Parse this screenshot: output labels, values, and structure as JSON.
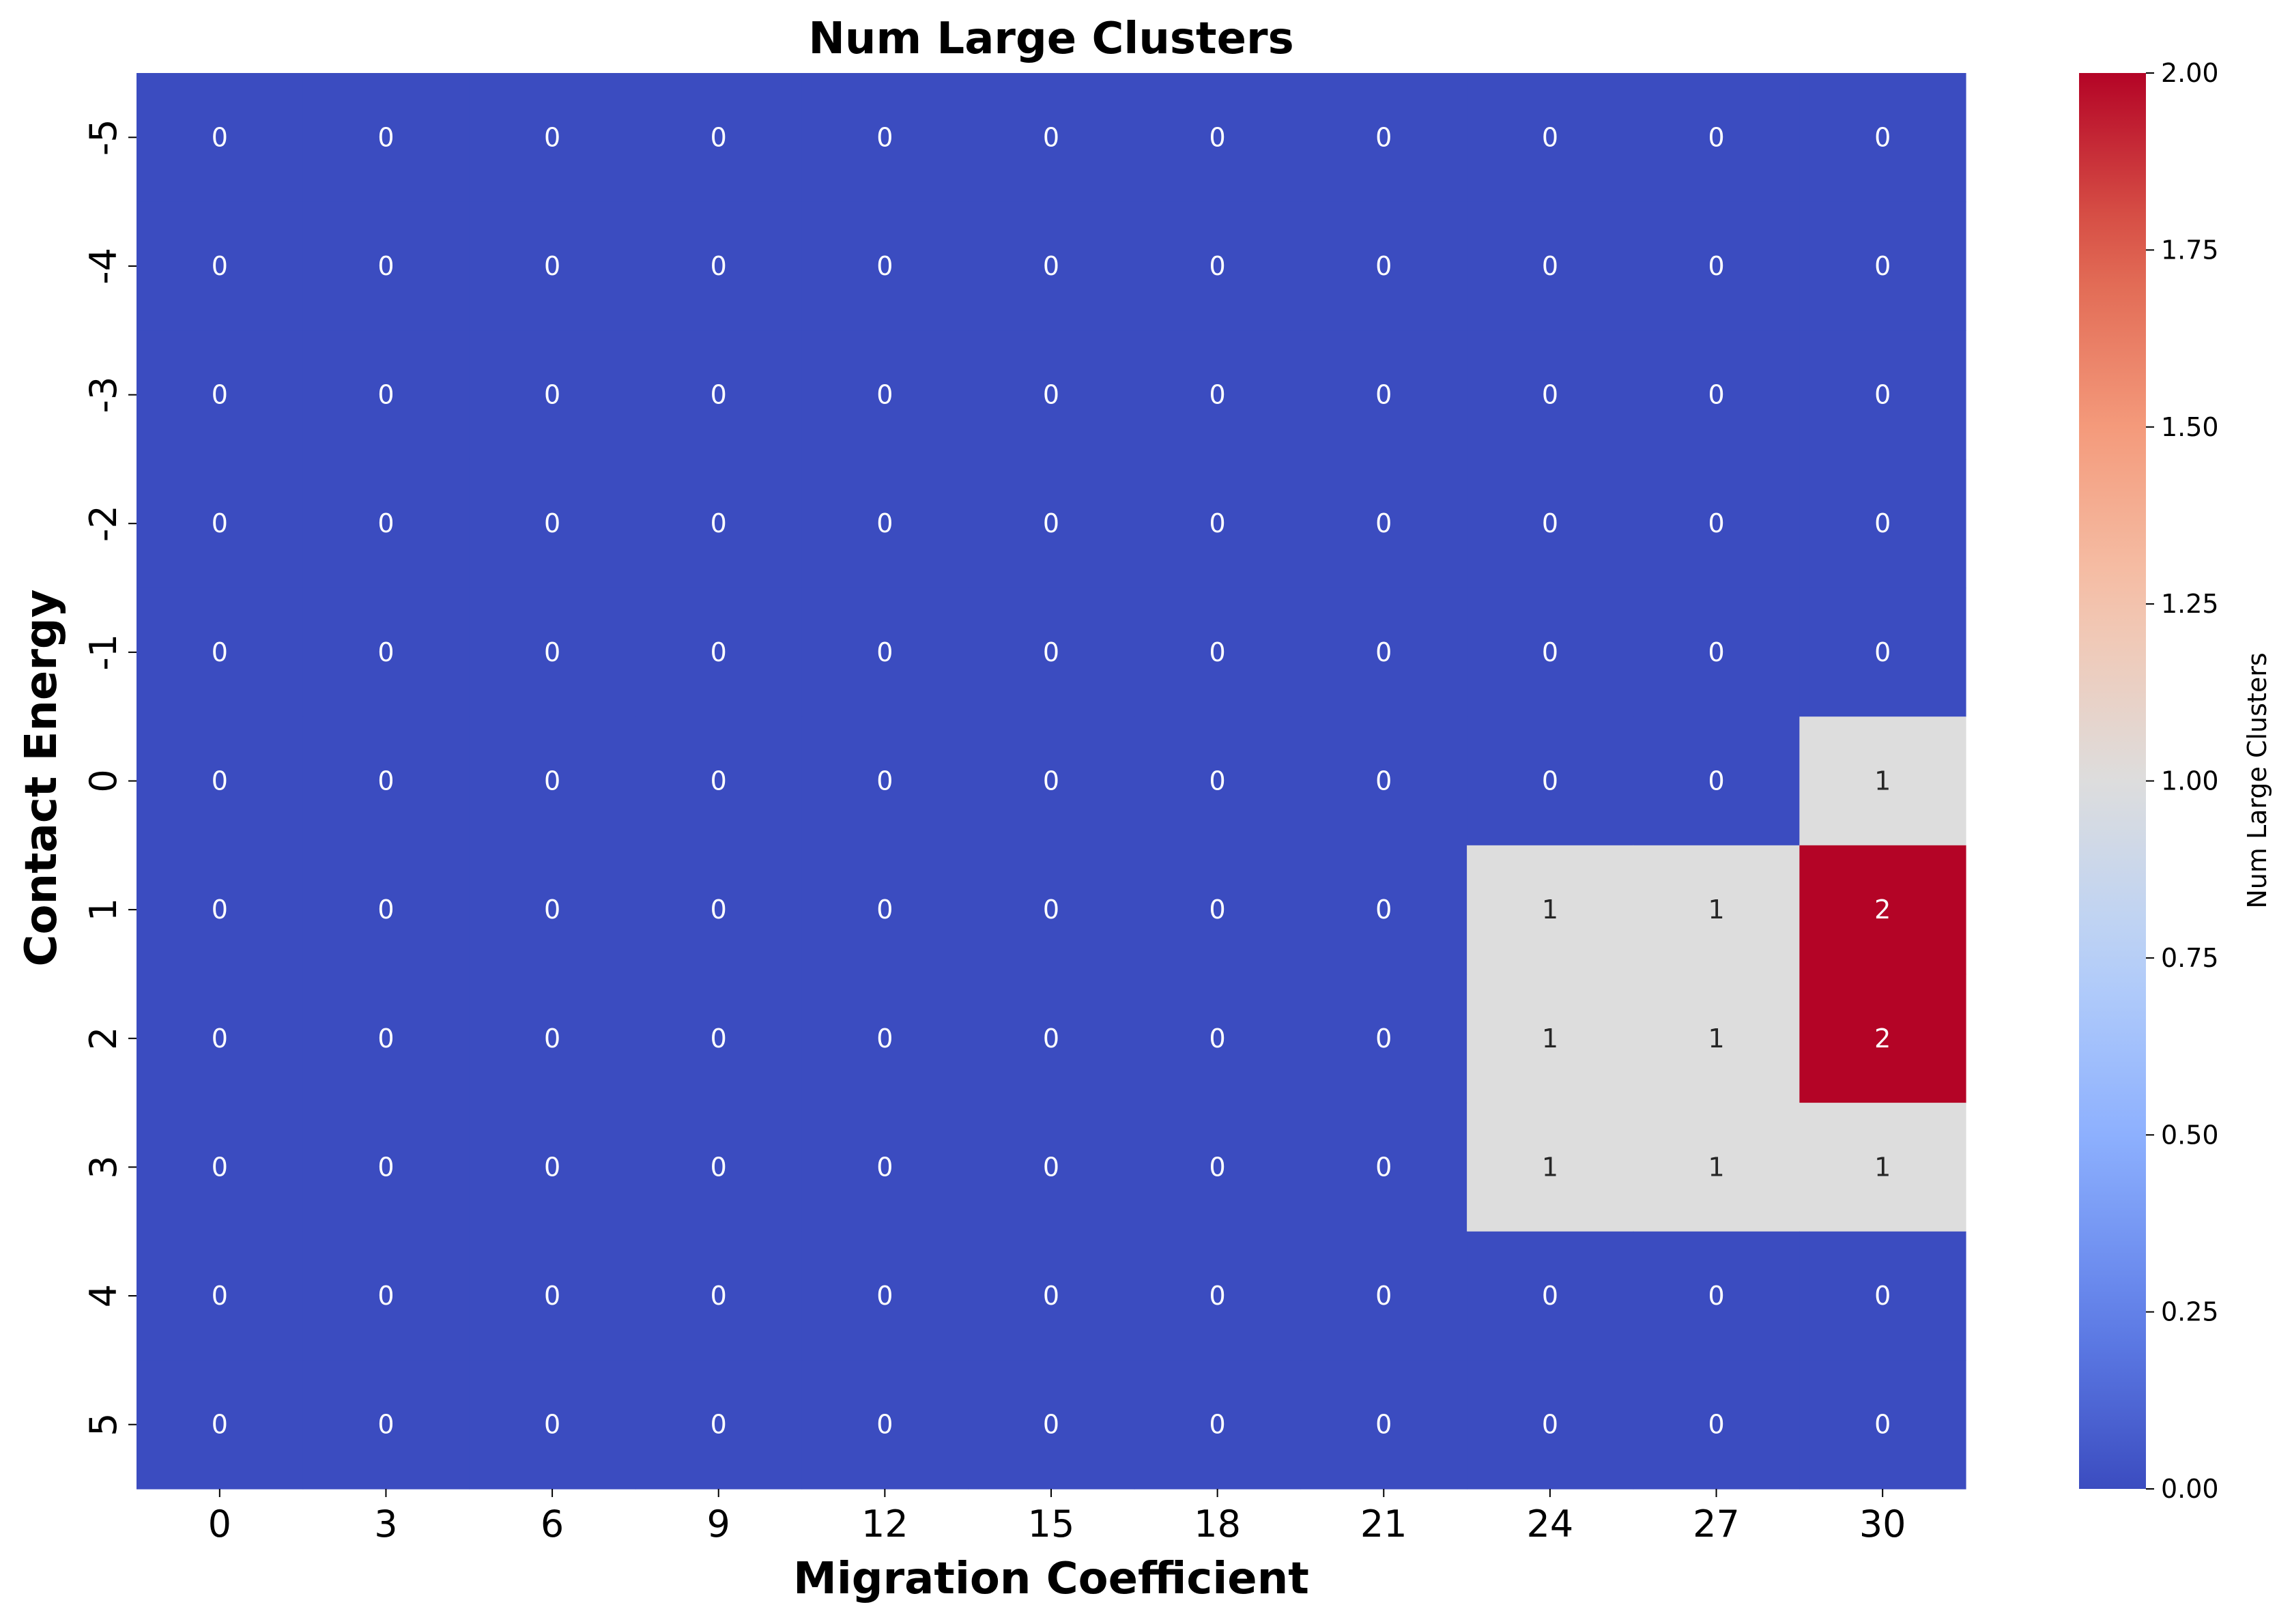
{
  "chart_data": {
    "type": "heatmap",
    "title": "Num Large Clusters",
    "xlabel": "Migration Coefficient",
    "ylabel": "Contact Energy",
    "x_categories": [
      "0",
      "3",
      "6",
      "9",
      "12",
      "15",
      "18",
      "21",
      "24",
      "27",
      "30"
    ],
    "y_categories": [
      "-5",
      "-4",
      "-3",
      "-2",
      "-1",
      "0",
      "1",
      "2",
      "3",
      "4",
      "5"
    ],
    "values": [
      [
        0,
        0,
        0,
        0,
        0,
        0,
        0,
        0,
        0,
        0,
        0
      ],
      [
        0,
        0,
        0,
        0,
        0,
        0,
        0,
        0,
        0,
        0,
        0
      ],
      [
        0,
        0,
        0,
        0,
        0,
        0,
        0,
        0,
        0,
        0,
        0
      ],
      [
        0,
        0,
        0,
        0,
        0,
        0,
        0,
        0,
        0,
        0,
        0
      ],
      [
        0,
        0,
        0,
        0,
        0,
        0,
        0,
        0,
        0,
        0,
        0
      ],
      [
        0,
        0,
        0,
        0,
        0,
        0,
        0,
        0,
        0,
        0,
        1
      ],
      [
        0,
        0,
        0,
        0,
        0,
        0,
        0,
        0,
        1,
        1,
        2
      ],
      [
        0,
        0,
        0,
        0,
        0,
        0,
        0,
        0,
        1,
        1,
        2
      ],
      [
        0,
        0,
        0,
        0,
        0,
        0,
        0,
        0,
        1,
        1,
        1
      ],
      [
        0,
        0,
        0,
        0,
        0,
        0,
        0,
        0,
        0,
        0,
        0
      ],
      [
        0,
        0,
        0,
        0,
        0,
        0,
        0,
        0,
        0,
        0,
        0
      ]
    ],
    "colormap": "coolwarm",
    "color_range": [
      0,
      2
    ],
    "colors": {
      "low": "#3b4cc0",
      "mid": "#dddddd",
      "high": "#b40426"
    },
    "colorbar": {
      "label": "Num Large Clusters",
      "ticks": [
        "0.00",
        "0.25",
        "0.50",
        "0.75",
        "1.00",
        "1.25",
        "1.50",
        "1.75",
        "2.00"
      ]
    },
    "annotations": true
  }
}
